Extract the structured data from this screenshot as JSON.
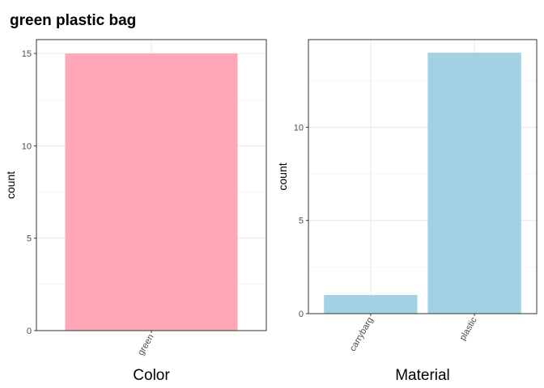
{
  "title": "green plastic bag",
  "chart_data": [
    {
      "type": "bar",
      "categories": [
        "green"
      ],
      "values": [
        15
      ],
      "xlabel": "Color",
      "ylabel": "count",
      "ylim": [
        0,
        15.75
      ],
      "yticks": [
        0,
        5,
        10,
        15
      ],
      "color": "#ffa7b6",
      "grid": true,
      "x_tick_rotation": -60
    },
    {
      "type": "bar",
      "categories": [
        "carrybarg",
        "plastic"
      ],
      "values": [
        1,
        14
      ],
      "xlabel": "Material",
      "ylabel": "count",
      "ylim": [
        0,
        14.7
      ],
      "yticks": [
        0,
        5,
        10
      ],
      "color": "#a1d1e2",
      "grid": true,
      "x_tick_rotation": -60
    }
  ]
}
